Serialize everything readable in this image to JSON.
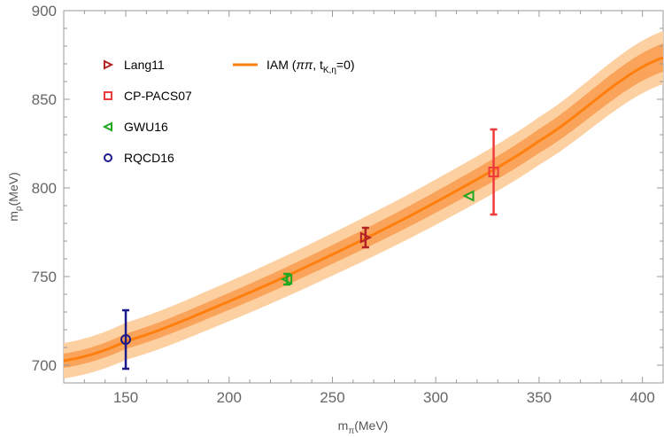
{
  "chart_data": {
    "type": "line",
    "xlabel": {
      "main": "m",
      "sub": "π",
      "unit": "(MeV)"
    },
    "ylabel": {
      "main": "m",
      "sub": "ρ",
      "unit": "(MeV)"
    },
    "xlim": [
      120,
      410
    ],
    "ylim": [
      690,
      900
    ],
    "x_ticks": [
      "150",
      "200",
      "250",
      "300",
      "350",
      "400"
    ],
    "y_ticks": [
      "700",
      "750",
      "800",
      "850",
      "900"
    ],
    "band": {
      "name": "IAM (ππ, tK,η=0)",
      "legend_parts": {
        "prefix": "IAM (",
        "pipi": "ππ",
        "comma": ", t",
        "sub": "K,η",
        "suffix": "=0)"
      },
      "color": "#ff7f0e",
      "inner_color": "#f9a45a",
      "outer_color": "#fdd0a2",
      "x": [
        120,
        150,
        200,
        250,
        300,
        350,
        410
      ],
      "central": [
        702.5,
        713.5,
        736,
        762.5,
        792,
        826.5,
        873.5
      ],
      "inner_halfwidth": [
        4,
        4.3,
        4.8,
        5.3,
        6,
        6.8,
        8
      ],
      "outer_halfwidth": [
        10,
        10.5,
        11.2,
        12,
        12.8,
        13.5,
        15
      ]
    },
    "series": [
      {
        "name": "Lang11",
        "marker": "triangle-right",
        "color": "#b22222",
        "points": [
          {
            "x": 266,
            "y": 772,
            "err": 5.5
          }
        ]
      },
      {
        "name": "CP-PACS07",
        "marker": "square",
        "color": "#ef3b3b",
        "points": [
          {
            "x": 328,
            "y": 809,
            "err": 24
          }
        ]
      },
      {
        "name": "GWU16",
        "marker": "triangle-left",
        "color": "#1fa81f",
        "points": [
          {
            "x": 228,
            "y": 748.5,
            "err": 3
          },
          {
            "x": 316,
            "y": 795.5,
            "err": 0
          }
        ]
      },
      {
        "name": "RQCD16",
        "marker": "circle",
        "color": "#1a1a8c",
        "points": [
          {
            "x": 150,
            "y": 714.5,
            "err": 16.5
          }
        ]
      }
    ]
  }
}
